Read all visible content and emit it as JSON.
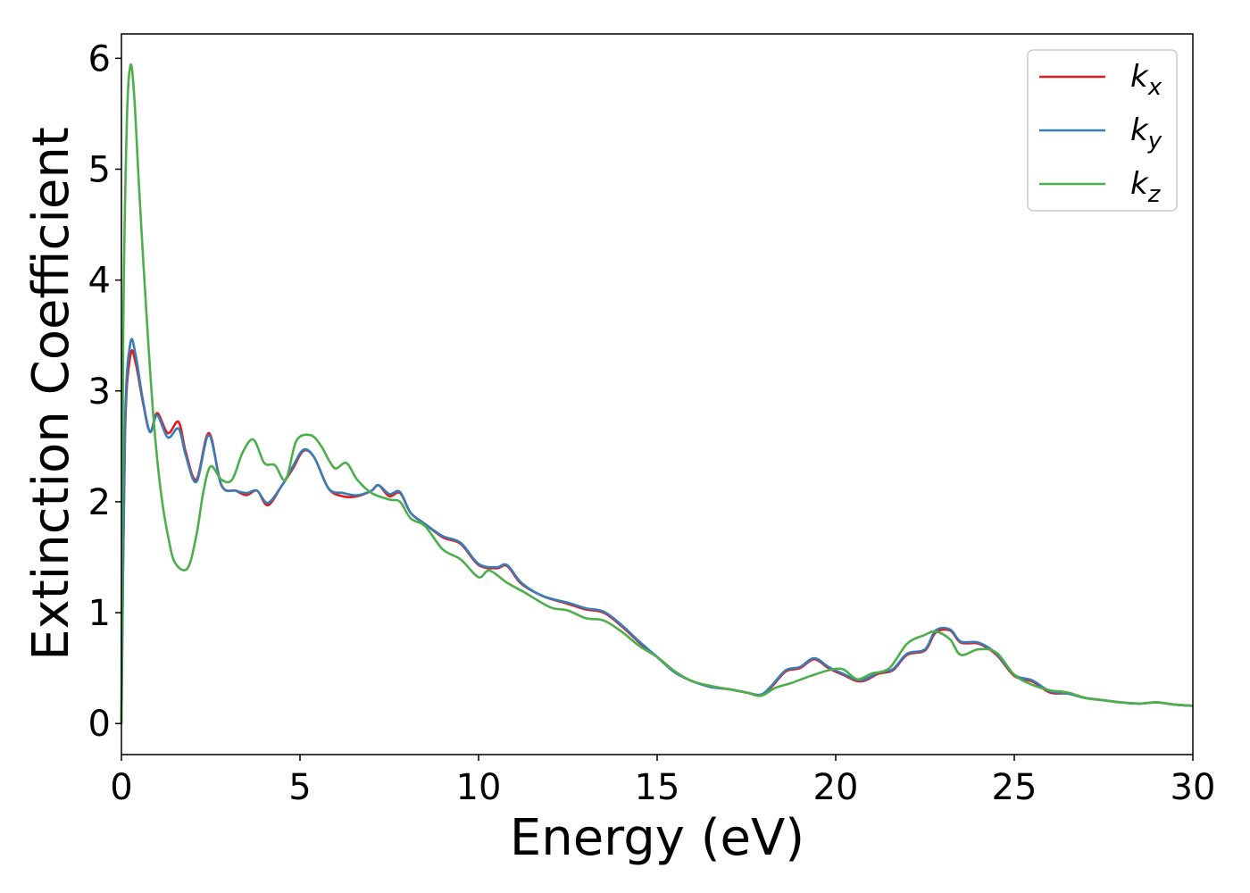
{
  "chart_data": {
    "type": "line",
    "title": "",
    "xlabel": "Energy (eV)",
    "ylabel": "Extinction Coefficient",
    "xlim": [
      0,
      30
    ],
    "ylim": [
      -0.28,
      6.22
    ],
    "xticks": [
      0,
      5,
      10,
      15,
      20,
      25,
      30
    ],
    "yticks": [
      0,
      1,
      2,
      3,
      4,
      5,
      6
    ],
    "grid": false,
    "legend_position": "top-right",
    "series": [
      {
        "name": "k",
        "subscript": "x",
        "color": "#e41a1c",
        "points": [
          [
            0,
            0
          ],
          [
            0.1,
            2.6
          ],
          [
            0.25,
            3.32
          ],
          [
            0.4,
            3.25
          ],
          [
            0.6,
            2.9
          ],
          [
            0.8,
            2.63
          ],
          [
            1.0,
            2.8
          ],
          [
            1.3,
            2.62
          ],
          [
            1.6,
            2.72
          ],
          [
            1.8,
            2.45
          ],
          [
            2.1,
            2.2
          ],
          [
            2.45,
            2.62
          ],
          [
            2.8,
            2.15
          ],
          [
            3.2,
            2.1
          ],
          [
            3.5,
            2.06
          ],
          [
            3.8,
            2.1
          ],
          [
            4.1,
            1.97
          ],
          [
            4.5,
            2.15
          ],
          [
            4.8,
            2.3
          ],
          [
            5.1,
            2.46
          ],
          [
            5.4,
            2.4
          ],
          [
            5.8,
            2.12
          ],
          [
            6.2,
            2.05
          ],
          [
            6.6,
            2.05
          ],
          [
            7.0,
            2.1
          ],
          [
            7.2,
            2.15
          ],
          [
            7.5,
            2.05
          ],
          [
            7.8,
            2.08
          ],
          [
            8.1,
            1.9
          ],
          [
            8.5,
            1.8
          ],
          [
            9.0,
            1.68
          ],
          [
            9.5,
            1.62
          ],
          [
            10.0,
            1.43
          ],
          [
            10.5,
            1.4
          ],
          [
            10.8,
            1.42
          ],
          [
            11.2,
            1.26
          ],
          [
            11.8,
            1.15
          ],
          [
            12.5,
            1.08
          ],
          [
            13.0,
            1.03
          ],
          [
            13.5,
            1.0
          ],
          [
            14.0,
            0.88
          ],
          [
            14.5,
            0.73
          ],
          [
            15.0,
            0.6
          ],
          [
            15.5,
            0.46
          ],
          [
            16.0,
            0.38
          ],
          [
            16.5,
            0.33
          ],
          [
            17.0,
            0.31
          ],
          [
            17.5,
            0.28
          ],
          [
            17.9,
            0.26
          ],
          [
            18.2,
            0.33
          ],
          [
            18.6,
            0.47
          ],
          [
            19.0,
            0.5
          ],
          [
            19.4,
            0.58
          ],
          [
            19.8,
            0.5
          ],
          [
            20.2,
            0.44
          ],
          [
            20.7,
            0.38
          ],
          [
            21.2,
            0.45
          ],
          [
            21.6,
            0.48
          ],
          [
            22.0,
            0.62
          ],
          [
            22.5,
            0.66
          ],
          [
            22.8,
            0.82
          ],
          [
            23.2,
            0.84
          ],
          [
            23.5,
            0.73
          ],
          [
            24.0,
            0.72
          ],
          [
            24.5,
            0.62
          ],
          [
            25.0,
            0.43
          ],
          [
            25.5,
            0.38
          ],
          [
            26.0,
            0.28
          ],
          [
            26.5,
            0.27
          ],
          [
            27.0,
            0.23
          ],
          [
            27.5,
            0.21
          ],
          [
            28.0,
            0.19
          ],
          [
            28.5,
            0.18
          ],
          [
            29.0,
            0.19
          ],
          [
            29.5,
            0.17
          ],
          [
            30.0,
            0.16
          ]
        ]
      },
      {
        "name": "k",
        "subscript": "y",
        "color": "#377eb8",
        "points": [
          [
            0,
            0
          ],
          [
            0.1,
            2.7
          ],
          [
            0.25,
            3.43
          ],
          [
            0.4,
            3.32
          ],
          [
            0.6,
            2.92
          ],
          [
            0.8,
            2.63
          ],
          [
            1.0,
            2.78
          ],
          [
            1.3,
            2.58
          ],
          [
            1.6,
            2.66
          ],
          [
            1.8,
            2.42
          ],
          [
            2.1,
            2.18
          ],
          [
            2.45,
            2.6
          ],
          [
            2.8,
            2.15
          ],
          [
            3.2,
            2.1
          ],
          [
            3.5,
            2.08
          ],
          [
            3.8,
            2.1
          ],
          [
            4.1,
            1.99
          ],
          [
            4.5,
            2.15
          ],
          [
            4.8,
            2.32
          ],
          [
            5.1,
            2.47
          ],
          [
            5.4,
            2.4
          ],
          [
            5.8,
            2.12
          ],
          [
            6.2,
            2.08
          ],
          [
            6.6,
            2.06
          ],
          [
            7.0,
            2.1
          ],
          [
            7.2,
            2.15
          ],
          [
            7.5,
            2.07
          ],
          [
            7.8,
            2.09
          ],
          [
            8.1,
            1.9
          ],
          [
            8.5,
            1.8
          ],
          [
            9.0,
            1.69
          ],
          [
            9.5,
            1.63
          ],
          [
            10.0,
            1.44
          ],
          [
            10.5,
            1.41
          ],
          [
            10.8,
            1.43
          ],
          [
            11.2,
            1.27
          ],
          [
            11.8,
            1.15
          ],
          [
            12.5,
            1.09
          ],
          [
            13.0,
            1.04
          ],
          [
            13.5,
            1.01
          ],
          [
            14.0,
            0.89
          ],
          [
            14.5,
            0.74
          ],
          [
            15.0,
            0.6
          ],
          [
            15.5,
            0.46
          ],
          [
            16.0,
            0.38
          ],
          [
            16.5,
            0.33
          ],
          [
            17.0,
            0.31
          ],
          [
            17.5,
            0.28
          ],
          [
            17.9,
            0.26
          ],
          [
            18.2,
            0.34
          ],
          [
            18.6,
            0.48
          ],
          [
            19.0,
            0.51
          ],
          [
            19.4,
            0.59
          ],
          [
            19.8,
            0.51
          ],
          [
            20.2,
            0.45
          ],
          [
            20.7,
            0.39
          ],
          [
            21.2,
            0.46
          ],
          [
            21.6,
            0.49
          ],
          [
            22.0,
            0.63
          ],
          [
            22.5,
            0.67
          ],
          [
            22.8,
            0.84
          ],
          [
            23.2,
            0.85
          ],
          [
            23.5,
            0.74
          ],
          [
            24.0,
            0.73
          ],
          [
            24.5,
            0.63
          ],
          [
            25.0,
            0.44
          ],
          [
            25.5,
            0.39
          ],
          [
            26.0,
            0.29
          ],
          [
            26.5,
            0.27
          ],
          [
            27.0,
            0.23
          ],
          [
            27.5,
            0.21
          ],
          [
            28.0,
            0.19
          ],
          [
            28.5,
            0.18
          ],
          [
            29.0,
            0.19
          ],
          [
            29.5,
            0.17
          ],
          [
            30.0,
            0.16
          ]
        ]
      },
      {
        "name": "k",
        "subscript": "z",
        "color": "#4daf4a",
        "points": [
          [
            0,
            0
          ],
          [
            0.05,
            3.5
          ],
          [
            0.15,
            5.4
          ],
          [
            0.25,
            5.93
          ],
          [
            0.35,
            5.7
          ],
          [
            0.5,
            4.8
          ],
          [
            0.7,
            3.7
          ],
          [
            0.9,
            2.75
          ],
          [
            1.1,
            2.1
          ],
          [
            1.3,
            1.7
          ],
          [
            1.5,
            1.45
          ],
          [
            1.85,
            1.4
          ],
          [
            2.1,
            1.7
          ],
          [
            2.3,
            2.1
          ],
          [
            2.5,
            2.32
          ],
          [
            2.8,
            2.2
          ],
          [
            3.1,
            2.2
          ],
          [
            3.4,
            2.45
          ],
          [
            3.7,
            2.56
          ],
          [
            4.0,
            2.35
          ],
          [
            4.3,
            2.33
          ],
          [
            4.6,
            2.2
          ],
          [
            4.9,
            2.55
          ],
          [
            5.3,
            2.6
          ],
          [
            5.6,
            2.5
          ],
          [
            5.8,
            2.38
          ],
          [
            6.0,
            2.3
          ],
          [
            6.3,
            2.35
          ],
          [
            6.6,
            2.2
          ],
          [
            7.0,
            2.08
          ],
          [
            7.5,
            2.02
          ],
          [
            7.8,
            2.0
          ],
          [
            8.1,
            1.85
          ],
          [
            8.5,
            1.78
          ],
          [
            9.0,
            1.57
          ],
          [
            9.5,
            1.48
          ],
          [
            10.0,
            1.32
          ],
          [
            10.3,
            1.38
          ],
          [
            10.8,
            1.27
          ],
          [
            11.3,
            1.18
          ],
          [
            12.0,
            1.05
          ],
          [
            12.5,
            1.02
          ],
          [
            13.0,
            0.95
          ],
          [
            13.5,
            0.93
          ],
          [
            14.0,
            0.83
          ],
          [
            14.5,
            0.7
          ],
          [
            15.0,
            0.6
          ],
          [
            15.5,
            0.47
          ],
          [
            16.0,
            0.38
          ],
          [
            16.5,
            0.34
          ],
          [
            17.0,
            0.31
          ],
          [
            17.5,
            0.28
          ],
          [
            17.9,
            0.25
          ],
          [
            18.3,
            0.32
          ],
          [
            18.8,
            0.37
          ],
          [
            19.3,
            0.43
          ],
          [
            19.8,
            0.48
          ],
          [
            20.2,
            0.49
          ],
          [
            20.6,
            0.4
          ],
          [
            21.0,
            0.45
          ],
          [
            21.5,
            0.5
          ],
          [
            22.0,
            0.72
          ],
          [
            22.5,
            0.8
          ],
          [
            22.8,
            0.83
          ],
          [
            23.2,
            0.76
          ],
          [
            23.5,
            0.62
          ],
          [
            24.0,
            0.67
          ],
          [
            24.5,
            0.64
          ],
          [
            25.0,
            0.44
          ],
          [
            25.5,
            0.35
          ],
          [
            26.0,
            0.3
          ],
          [
            26.5,
            0.28
          ],
          [
            27.0,
            0.23
          ],
          [
            27.5,
            0.21
          ],
          [
            28.0,
            0.19
          ],
          [
            28.5,
            0.18
          ],
          [
            29.0,
            0.19
          ],
          [
            29.5,
            0.17
          ],
          [
            30.0,
            0.16
          ]
        ]
      }
    ]
  }
}
